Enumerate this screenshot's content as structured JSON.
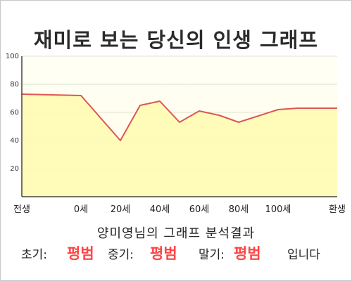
{
  "title": "재미로 보는 당신의 인생 그래프",
  "subtitle": "양미영님의 그래프 분석결과",
  "results": {
    "early_label": "초기:",
    "early_value": "평범",
    "middle_label": "중기:",
    "middle_value": "평범",
    "late_label": "말기:",
    "late_value": "평범",
    "suffix": "입니다"
  },
  "colors": {
    "line": "#e05555",
    "fill": "#fffbb0",
    "background": "#fffff2",
    "result_value": "#ff4444"
  },
  "chart_data": {
    "type": "area",
    "title": "",
    "xlabel": "",
    "ylabel": "",
    "ylim": [
      0,
      100
    ],
    "y_ticks": [
      20,
      40,
      60,
      80,
      100
    ],
    "x_tick_labels": [
      "전생",
      "0세",
      "20세",
      "40세",
      "60세",
      "80세",
      "100세",
      "환생"
    ],
    "grid": true,
    "series": [
      {
        "points": [
          {
            "x": "전생",
            "y": 73
          },
          {
            "x": "0세",
            "y": 72
          },
          {
            "x": "20세",
            "y": 40
          },
          {
            "x": "30세",
            "y": 65
          },
          {
            "x": "40세",
            "y": 68
          },
          {
            "x": "50세",
            "y": 53
          },
          {
            "x": "60세",
            "y": 61
          },
          {
            "x": "70세",
            "y": 58
          },
          {
            "x": "80세",
            "y": 53
          },
          {
            "x": "100세",
            "y": 62
          },
          {
            "x": "110세",
            "y": 63
          },
          {
            "x": "환생",
            "y": 63
          }
        ]
      }
    ]
  }
}
